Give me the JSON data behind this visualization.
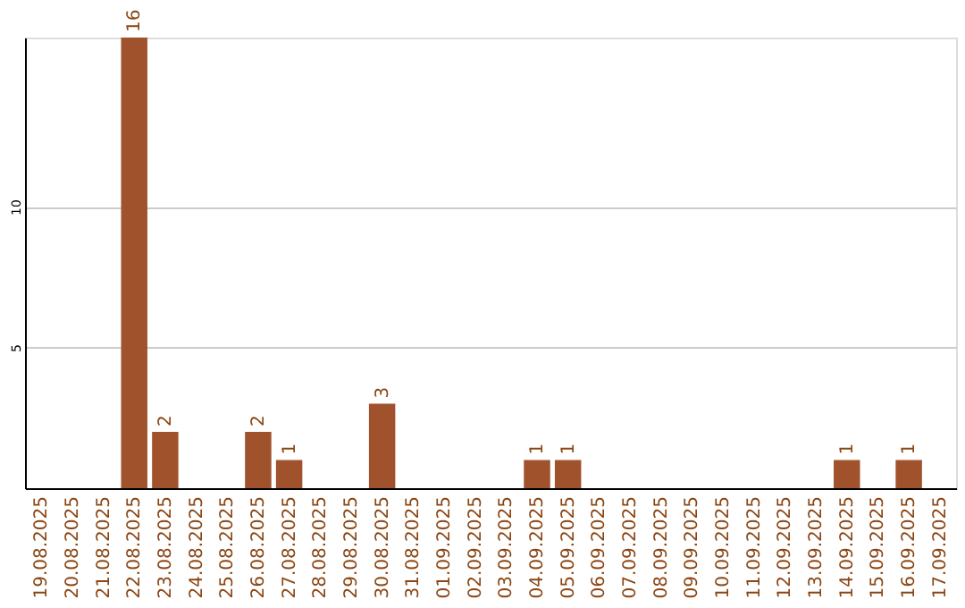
{
  "chart_data": {
    "type": "bar",
    "categories": [
      "19.08.2025",
      "20.08.2025",
      "21.08.2025",
      "22.08.2025",
      "23.08.2025",
      "24.08.2025",
      "25.08.2025",
      "26.08.2025",
      "27.08.2025",
      "28.08.2025",
      "29.08.2025",
      "30.08.2025",
      "31.08.2025",
      "01.09.2025",
      "02.09.2025",
      "03.09.2025",
      "04.09.2025",
      "05.09.2025",
      "06.09.2025",
      "07.09.2025",
      "08.09.2025",
      "09.09.2025",
      "10.09.2025",
      "11.09.2025",
      "12.09.2025",
      "13.09.2025",
      "14.09.2025",
      "15.09.2025",
      "16.09.2025",
      "17.09.2025"
    ],
    "values": [
      0,
      0,
      0,
      16,
      2,
      0,
      0,
      2,
      1,
      0,
      0,
      3,
      0,
      0,
      0,
      0,
      1,
      1,
      0,
      0,
      0,
      0,
      0,
      0,
      0,
      0,
      1,
      0,
      1,
      0
    ],
    "value_labels": [
      null,
      null,
      null,
      "16",
      "2",
      null,
      null,
      "2",
      "1",
      null,
      null,
      "3",
      null,
      null,
      null,
      null,
      "1",
      "1",
      null,
      null,
      null,
      null,
      null,
      null,
      null,
      null,
      "1",
      null,
      "1",
      null
    ],
    "color": "#a0522d",
    "ylim": [
      0,
      16
    ],
    "yticks": [
      5,
      10
    ],
    "grid": "y"
  }
}
